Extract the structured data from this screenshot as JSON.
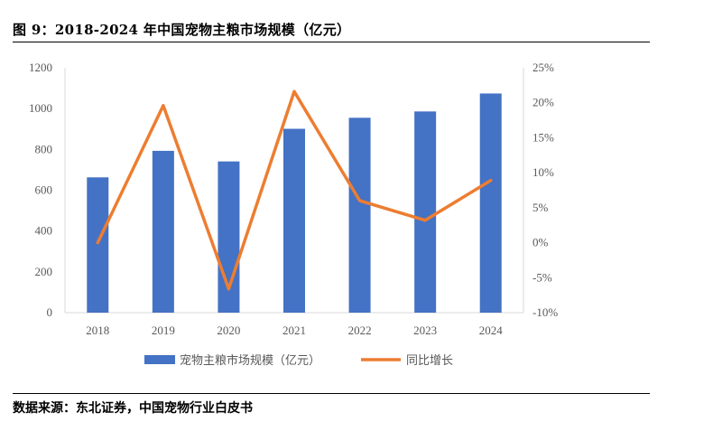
{
  "figure": {
    "title": "图 9：2018-2024 年中国宠物主粮市场规模（亿元）",
    "source": "数据来源：东北证券，中国宠物行业白皮书"
  },
  "colors": {
    "bar": "#4472C4",
    "line": "#ED7D31",
    "axis": "#D9D9D9",
    "text": "#595959"
  },
  "chart_data": {
    "type": "bar",
    "title": "2018-2024 年中国宠物主粮市场规模（亿元）",
    "categories": [
      "2018",
      "2019",
      "2020",
      "2021",
      "2022",
      "2023",
      "2024"
    ],
    "series": [
      {
        "name": "宠物主粮市场规模（亿元）",
        "type": "bar",
        "axis": "left",
        "values": [
          663,
          793,
          741,
          901,
          955,
          986,
          1074
        ]
      },
      {
        "name": "同比增长",
        "type": "line",
        "axis": "right",
        "values": [
          0.0,
          19.6,
          -6.6,
          21.6,
          6.0,
          3.2,
          8.9
        ]
      }
    ],
    "y_left": {
      "ylim": [
        0,
        1200
      ],
      "ticks": [
        "0",
        "200",
        "400",
        "600",
        "800",
        "1000",
        "1200"
      ]
    },
    "y_right": {
      "ylim": [
        -10,
        25
      ],
      "ticks": [
        "-10%",
        "-5%",
        "0%",
        "5%",
        "10%",
        "15%",
        "20%",
        "25%"
      ]
    },
    "grid": false,
    "legend": {
      "position": "bottom",
      "entries": [
        "宠物主粮市场规模（亿元）",
        "同比增长"
      ]
    }
  }
}
